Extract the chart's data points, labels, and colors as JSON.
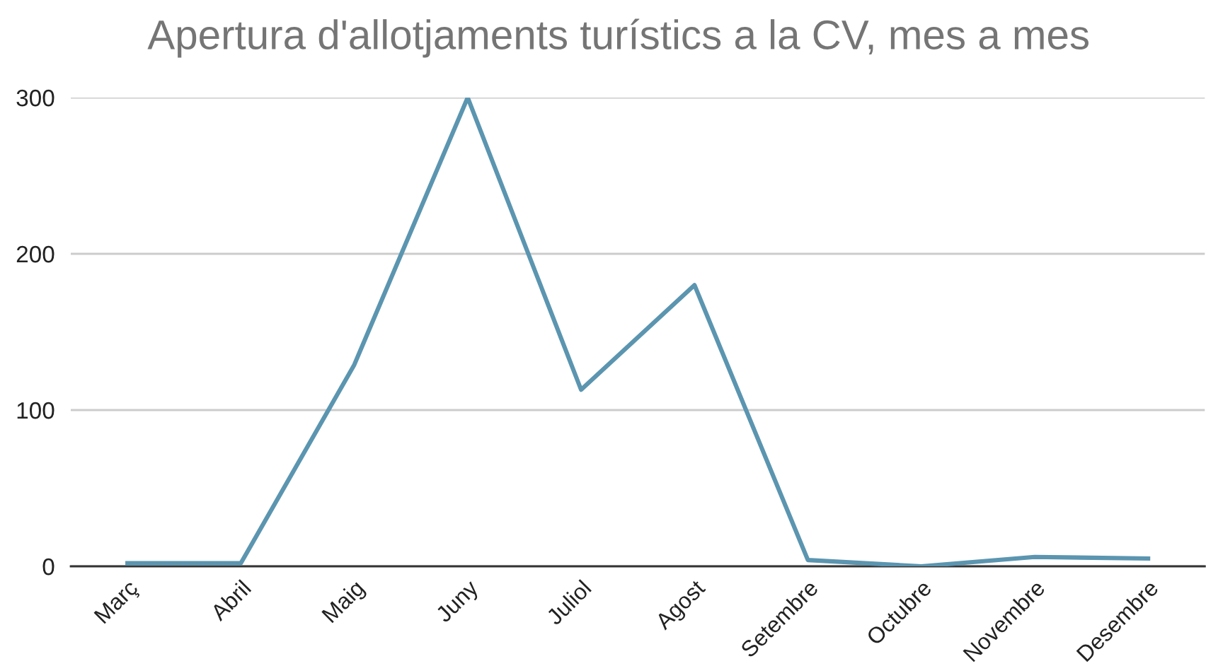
{
  "chart_data": {
    "type": "line",
    "title": "Apertura d'allotjaments turístics a la CV, mes a mes",
    "categories": [
      "Març",
      "Abril",
      "Maig",
      "Juny",
      "Juliol",
      "Agost",
      "Setembre",
      "Octubre",
      "Novembre",
      "Desembre"
    ],
    "series": [
      {
        "color": "#5b95b0",
        "values": [
          2,
          2,
          129,
          300,
          113,
          180,
          4,
          0,
          6,
          5
        ]
      }
    ],
    "ylim": [
      0,
      300
    ],
    "yticks": [
      0,
      100,
      200,
      300
    ],
    "grid": "y",
    "marker": "none",
    "line_style": "solid"
  }
}
